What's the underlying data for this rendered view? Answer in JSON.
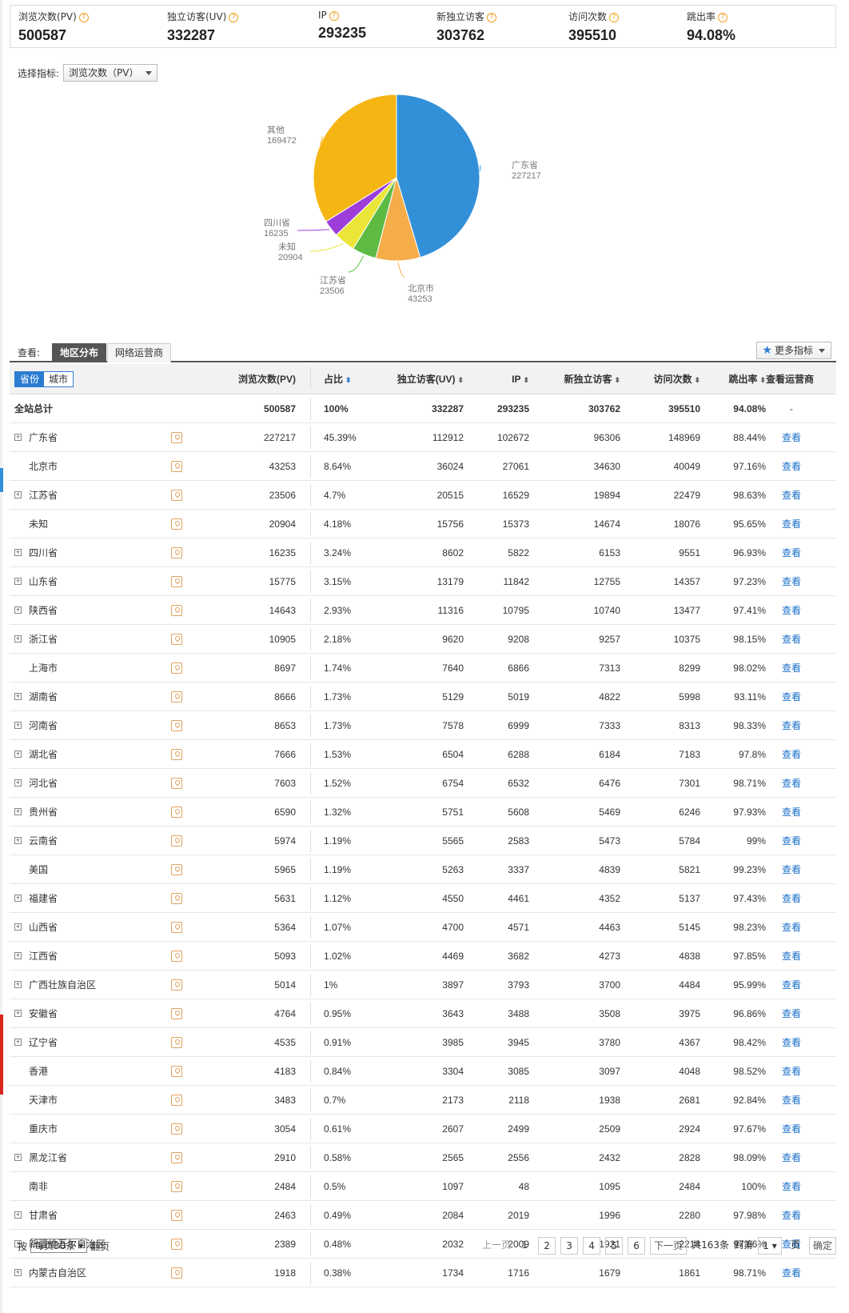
{
  "summary": [
    {
      "label": "浏览次数(PV)",
      "value": "500587"
    },
    {
      "label": "独立访客(UV)",
      "value": "332287"
    },
    {
      "label": "IP",
      "value": "293235"
    },
    {
      "label": "新独立访客",
      "value": "303762"
    },
    {
      "label": "访问次数",
      "value": "395510"
    },
    {
      "label": "跳出率",
      "value": "94.08%"
    }
  ],
  "metric": {
    "label": "选择指标:",
    "value": "浏览次数（PV）"
  },
  "chart_data": {
    "type": "pie",
    "title": "",
    "slices": [
      {
        "label": "广东省",
        "value": 227217,
        "color": "#3290d8"
      },
      {
        "label": "北京市",
        "value": 43253,
        "color": "#f5ad4a"
      },
      {
        "label": "江苏省",
        "value": 23506,
        "color": "#5dbb44"
      },
      {
        "label": "未知",
        "value": 20904,
        "color": "#eae536"
      },
      {
        "label": "四川省",
        "value": 16235,
        "color": "#9d3edb"
      },
      {
        "label": "其他",
        "value": 169472,
        "color": "#f5b613"
      }
    ]
  },
  "view": {
    "label": "查看:",
    "tabs": [
      "地区分布",
      "网络运营商"
    ],
    "more": "更多指标"
  },
  "table": {
    "toggle": [
      "省份",
      "城市"
    ],
    "headers": {
      "pv": "浏览次数(PV)",
      "pct": "占比",
      "uv": "独立访客(UV)",
      "ip": "IP",
      "nuv": "新独立访客",
      "visits": "访问次数",
      "bounce": "跳出率",
      "isp": "查看运营商"
    },
    "total": {
      "name": "全站总计",
      "pv": "500587",
      "pct": "100%",
      "uv": "332287",
      "ip": "293235",
      "nuv": "303762",
      "visits": "395510",
      "bounce": "94.08%",
      "isp": "-"
    },
    "view_link": "查看",
    "rows": [
      {
        "exp": true,
        "name": "广东省",
        "pv": "227217",
        "pct": "45.39%",
        "uv": "112912",
        "ip": "102672",
        "nuv": "96306",
        "visits": "148969",
        "bounce": "88.44%"
      },
      {
        "exp": false,
        "name": "北京市",
        "pv": "43253",
        "pct": "8.64%",
        "uv": "36024",
        "ip": "27061",
        "nuv": "34630",
        "visits": "40049",
        "bounce": "97.16%"
      },
      {
        "exp": true,
        "name": "江苏省",
        "pv": "23506",
        "pct": "4.7%",
        "uv": "20515",
        "ip": "16529",
        "nuv": "19894",
        "visits": "22479",
        "bounce": "98.63%"
      },
      {
        "exp": false,
        "name": "未知",
        "pv": "20904",
        "pct": "4.18%",
        "uv": "15756",
        "ip": "15373",
        "nuv": "14674",
        "visits": "18076",
        "bounce": "95.65%"
      },
      {
        "exp": true,
        "name": "四川省",
        "pv": "16235",
        "pct": "3.24%",
        "uv": "8602",
        "ip": "5822",
        "nuv": "6153",
        "visits": "9551",
        "bounce": "96.93%"
      },
      {
        "exp": true,
        "name": "山东省",
        "pv": "15775",
        "pct": "3.15%",
        "uv": "13179",
        "ip": "11842",
        "nuv": "12755",
        "visits": "14357",
        "bounce": "97.23%"
      },
      {
        "exp": true,
        "name": "陕西省",
        "pv": "14643",
        "pct": "2.93%",
        "uv": "11316",
        "ip": "10795",
        "nuv": "10740",
        "visits": "13477",
        "bounce": "97.41%"
      },
      {
        "exp": true,
        "name": "浙江省",
        "pv": "10905",
        "pct": "2.18%",
        "uv": "9620",
        "ip": "9208",
        "nuv": "9257",
        "visits": "10375",
        "bounce": "98.15%"
      },
      {
        "exp": false,
        "name": "上海市",
        "pv": "8697",
        "pct": "1.74%",
        "uv": "7640",
        "ip": "6866",
        "nuv": "7313",
        "visits": "8299",
        "bounce": "98.02%"
      },
      {
        "exp": true,
        "name": "湖南省",
        "pv": "8666",
        "pct": "1.73%",
        "uv": "5129",
        "ip": "5019",
        "nuv": "4822",
        "visits": "5998",
        "bounce": "93.11%"
      },
      {
        "exp": true,
        "name": "河南省",
        "pv": "8653",
        "pct": "1.73%",
        "uv": "7578",
        "ip": "6999",
        "nuv": "7333",
        "visits": "8313",
        "bounce": "98.33%"
      },
      {
        "exp": true,
        "name": "湖北省",
        "pv": "7666",
        "pct": "1.53%",
        "uv": "6504",
        "ip": "6288",
        "nuv": "6184",
        "visits": "7183",
        "bounce": "97.8%"
      },
      {
        "exp": true,
        "name": "河北省",
        "pv": "7603",
        "pct": "1.52%",
        "uv": "6754",
        "ip": "6532",
        "nuv": "6476",
        "visits": "7301",
        "bounce": "98.71%"
      },
      {
        "exp": true,
        "name": "贵州省",
        "pv": "6590",
        "pct": "1.32%",
        "uv": "5751",
        "ip": "5608",
        "nuv": "5469",
        "visits": "6246",
        "bounce": "97.93%"
      },
      {
        "exp": true,
        "name": "云南省",
        "pv": "5974",
        "pct": "1.19%",
        "uv": "5565",
        "ip": "2583",
        "nuv": "5473",
        "visits": "5784",
        "bounce": "99%"
      },
      {
        "exp": false,
        "name": "美国",
        "pv": "5965",
        "pct": "1.19%",
        "uv": "5263",
        "ip": "3337",
        "nuv": "4839",
        "visits": "5821",
        "bounce": "99.23%"
      },
      {
        "exp": true,
        "name": "福建省",
        "pv": "5631",
        "pct": "1.12%",
        "uv": "4550",
        "ip": "4461",
        "nuv": "4352",
        "visits": "5137",
        "bounce": "97.43%"
      },
      {
        "exp": true,
        "name": "山西省",
        "pv": "5364",
        "pct": "1.07%",
        "uv": "4700",
        "ip": "4571",
        "nuv": "4463",
        "visits": "5145",
        "bounce": "98.23%"
      },
      {
        "exp": true,
        "name": "江西省",
        "pv": "5093",
        "pct": "1.02%",
        "uv": "4469",
        "ip": "3682",
        "nuv": "4273",
        "visits": "4838",
        "bounce": "97.85%"
      },
      {
        "exp": true,
        "name": "广西壮族自治区",
        "pv": "5014",
        "pct": "1%",
        "uv": "3897",
        "ip": "3793",
        "nuv": "3700",
        "visits": "4484",
        "bounce": "95.99%"
      },
      {
        "exp": true,
        "name": "安徽省",
        "pv": "4764",
        "pct": "0.95%",
        "uv": "3643",
        "ip": "3488",
        "nuv": "3508",
        "visits": "3975",
        "bounce": "96.86%"
      },
      {
        "exp": true,
        "name": "辽宁省",
        "pv": "4535",
        "pct": "0.91%",
        "uv": "3985",
        "ip": "3945",
        "nuv": "3780",
        "visits": "4367",
        "bounce": "98.42%"
      },
      {
        "exp": false,
        "name": "香港",
        "pv": "4183",
        "pct": "0.84%",
        "uv": "3304",
        "ip": "3085",
        "nuv": "3097",
        "visits": "4048",
        "bounce": "98.52%"
      },
      {
        "exp": false,
        "name": "天津市",
        "pv": "3483",
        "pct": "0.7%",
        "uv": "2173",
        "ip": "2118",
        "nuv": "1938",
        "visits": "2681",
        "bounce": "92.84%"
      },
      {
        "exp": false,
        "name": "重庆市",
        "pv": "3054",
        "pct": "0.61%",
        "uv": "2607",
        "ip": "2499",
        "nuv": "2509",
        "visits": "2924",
        "bounce": "97.67%"
      },
      {
        "exp": true,
        "name": "黑龙江省",
        "pv": "2910",
        "pct": "0.58%",
        "uv": "2565",
        "ip": "2556",
        "nuv": "2432",
        "visits": "2828",
        "bounce": "98.09%"
      },
      {
        "exp": false,
        "name": "南非",
        "pv": "2484",
        "pct": "0.5%",
        "uv": "1097",
        "ip": "48",
        "nuv": "1095",
        "visits": "2484",
        "bounce": "100%"
      },
      {
        "exp": true,
        "name": "甘肃省",
        "pv": "2463",
        "pct": "0.49%",
        "uv": "2084",
        "ip": "2019",
        "nuv": "1996",
        "visits": "2280",
        "bounce": "97.98%"
      },
      {
        "exp": true,
        "name": "新疆维吾尔自治区",
        "pv": "2389",
        "pct": "0.48%",
        "uv": "2032",
        "ip": "2009",
        "nuv": "1921",
        "visits": "2218",
        "bounce": "97.66%"
      },
      {
        "exp": true,
        "name": "内蒙古自治区",
        "pv": "1918",
        "pct": "0.38%",
        "uv": "1734",
        "ip": "1716",
        "nuv": "1679",
        "visits": "1861",
        "bounce": "98.71%"
      }
    ]
  },
  "pager": {
    "prefix": "按",
    "per_page": "每页30条",
    "suffix": "翻页",
    "prev": "上一页",
    "pages": [
      "1",
      "2",
      "3",
      "4",
      "5",
      "6"
    ],
    "next": "下一页",
    "total": "共163条",
    "goto": "到第",
    "goto_value": "1",
    "page_unit": "页",
    "confirm": "确定"
  }
}
